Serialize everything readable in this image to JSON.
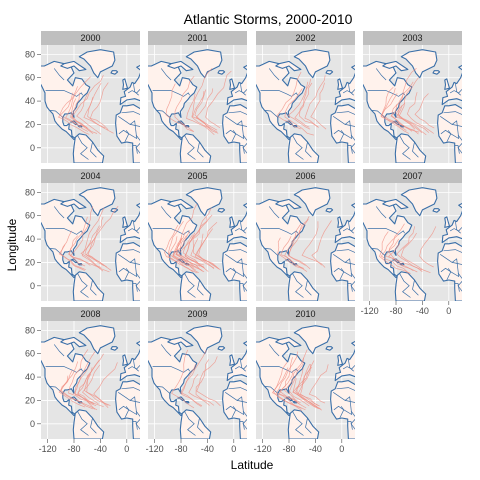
{
  "chart_data": {
    "type": "faceted-map-tracks",
    "title": "Atlantic Storms, 2000-2010",
    "xlabel": "Latitude",
    "ylabel": "Longitude",
    "x_ticks": [
      -120,
      -80,
      -40,
      0
    ],
    "y_ticks": [
      0,
      20,
      40,
      60,
      80
    ],
    "xlim": [
      -130,
      20
    ],
    "ylim": [
      -13,
      88
    ],
    "grid": true,
    "colors": {
      "panel_bg": "#e5e5e5",
      "grid": "#ffffff",
      "land_fill": "#fff2ec",
      "border": "#3a6fa8",
      "track": "#f08c80",
      "strip_bg": "#bfbfbf"
    },
    "facets": [
      {
        "label": "2000",
        "storms": 10
      },
      {
        "label": "2001",
        "storms": 8
      },
      {
        "label": "2002",
        "storms": 7
      },
      {
        "label": "2003",
        "storms": 11
      },
      {
        "label": "2004",
        "storms": 10
      },
      {
        "label": "2005",
        "storms": 18
      },
      {
        "label": "2006",
        "storms": 7
      },
      {
        "label": "2007",
        "storms": 8
      },
      {
        "label": "2008",
        "storms": 12
      },
      {
        "label": "2009",
        "storms": 6
      },
      {
        "label": "2010",
        "storms": 14
      }
    ]
  }
}
